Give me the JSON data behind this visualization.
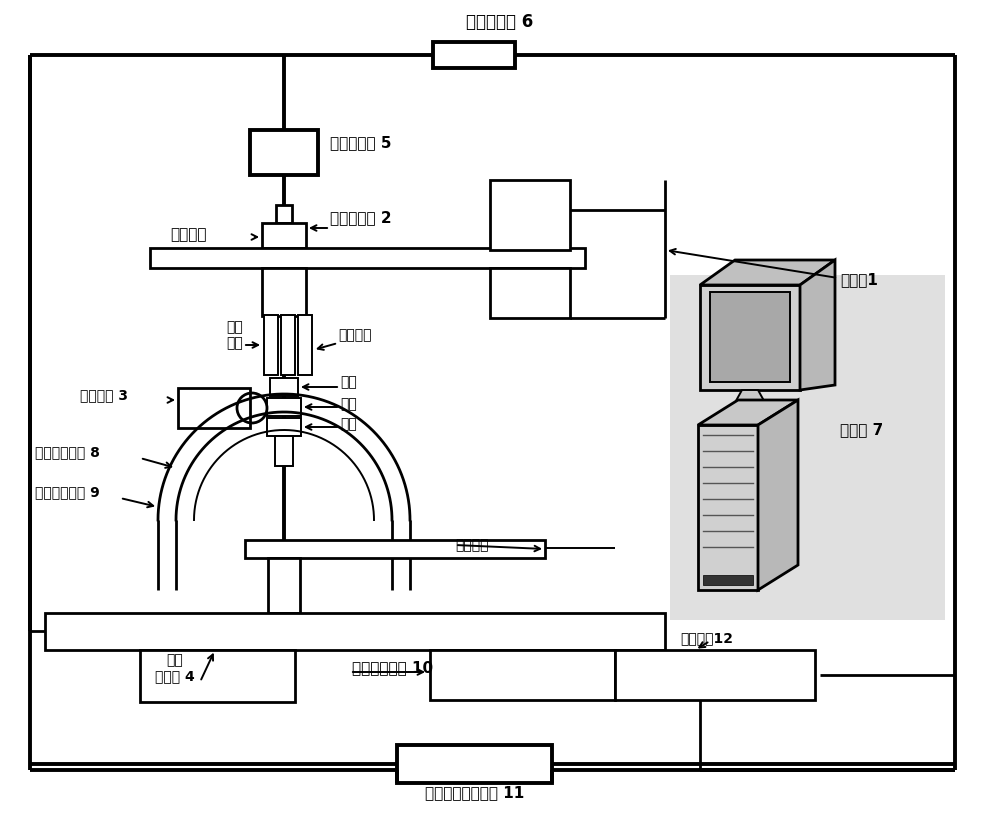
{
  "bg_color": "#ffffff",
  "lc": "#000000",
  "labels": {
    "data_card": "数据采集卡 6",
    "camera": "数码摄像机 5",
    "eyepiece": "显微目镜",
    "reticle": "基准分划板 2",
    "microscope": "显微镜1",
    "light_src": "照明光源 3",
    "pm_fiber": "保偏\n光纤",
    "objective": "显微物镜",
    "presser": "压脚",
    "clamp1": "夹具",
    "clamp2": "夹具",
    "axis_ctrl": "对轴控制模块 8",
    "fix_ctrl": "定轴控制模块 9",
    "concentric": "同心轴承",
    "rotation": "转动执行机构 10",
    "stage": "十字\n载物台 4",
    "feedback": "对轴反馈控制模块 11",
    "computer": "计算机 7",
    "stable": "稳定平台12"
  },
  "figsize": [
    10.0,
    8.14
  ],
  "dpi": 100
}
